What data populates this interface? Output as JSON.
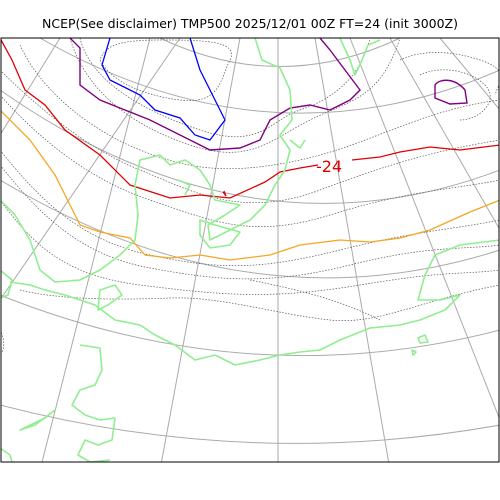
{
  "title": "NCEP(See disclaimer) TMP500 2025/12/01 00Z FT=24 (init 3000Z)",
  "contour_label": "-24",
  "colors": {
    "coastline": "#90ee90",
    "graticule": "#aaaaaa",
    "isotherm_dotted": "#555555",
    "isotherm_red": "#e00000",
    "isotherm_orange": "#f5a623",
    "isotherm_purple": "#800080",
    "isotherm_blue": "#0000ff",
    "frame": "#000000"
  },
  "legend": []
}
